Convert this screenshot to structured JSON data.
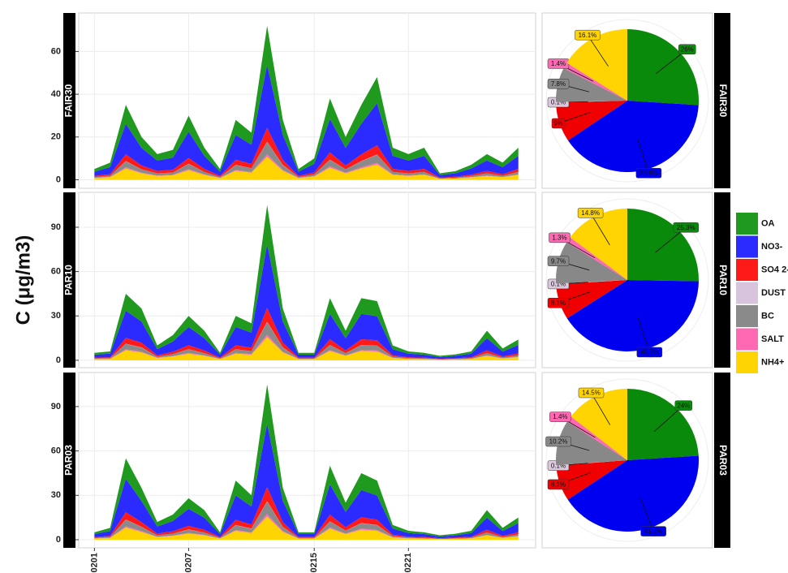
{
  "y_label": "C (μg/m3)",
  "chart_data": [
    {
      "type": "area",
      "title": "FAIR30",
      "x": [
        1,
        2,
        3,
        4,
        5,
        6,
        7,
        8,
        9,
        10,
        11,
        12,
        13,
        14,
        15,
        16,
        17,
        18,
        19,
        20,
        21,
        22,
        23,
        24,
        25,
        26,
        27,
        28
      ],
      "xlim": [
        0,
        29.1
      ],
      "xticks": [
        1,
        7,
        15,
        21
      ],
      "ylim": [
        -4,
        78
      ],
      "yticks": [
        0,
        20,
        40,
        60
      ],
      "grid": true,
      "series": [
        {
          "name": "OA",
          "color": "#1f9a1f",
          "values": [
            1.2,
            2.1,
            8.8,
            5.1,
            3.0,
            3.6,
            7.5,
            3.8,
            1.2,
            7.1,
            5.6,
            18.2,
            7.1,
            1.2,
            2.5,
            9.6,
            5.1,
            8.8,
            12.2,
            3.8,
            3.0,
            3.8,
            0.8,
            1.0,
            1.7,
            3.0,
            2.1,
            3.8
          ]
        },
        {
          "name": "NO3-",
          "color": "#2b2bff",
          "values": [
            2.0,
            3.3,
            14.3,
            8.2,
            4.9,
            5.7,
            12.3,
            6.1,
            2.0,
            11.5,
            9.0,
            29.5,
            11.5,
            2.0,
            4.1,
            15.6,
            8.2,
            14.3,
            19.7,
            6.1,
            4.9,
            6.1,
            1.2,
            1.6,
            2.9,
            4.9,
            3.3,
            6.1
          ]
        },
        {
          "name": "SO4 2-",
          "color": "#ff1a1a",
          "values": [
            0.5,
            0.7,
            3.2,
            1.8,
            1.1,
            1.3,
            2.7,
            1.4,
            0.5,
            2.5,
            2.0,
            6.5,
            2.5,
            0.5,
            0.9,
            3.4,
            1.8,
            3.2,
            4.3,
            1.4,
            1.1,
            1.4,
            0.3,
            0.4,
            0.6,
            1.1,
            0.7,
            1.4
          ]
        },
        {
          "name": "DUST",
          "color": "#d8c4dc",
          "values": [
            0,
            0,
            0.1,
            0,
            0,
            0,
            0.1,
            0,
            0,
            0.1,
            0,
            0.1,
            0.1,
            0,
            0,
            0.1,
            0,
            0.1,
            0.1,
            0,
            0,
            0,
            0,
            0,
            0,
            0,
            0,
            0
          ]
        },
        {
          "name": "BC",
          "color": "#8a8a8a",
          "values": [
            0.4,
            0.6,
            2.8,
            1.6,
            1.0,
            1.1,
            2.4,
            1.2,
            0.4,
            2.2,
            1.8,
            5.8,
            2.2,
            0.4,
            0.8,
            3.0,
            1.6,
            2.8,
            3.8,
            1.2,
            1.0,
            1.2,
            0.2,
            0.3,
            0.6,
            1.0,
            0.6,
            1.2
          ]
        },
        {
          "name": "SALT",
          "color": "#ff69b4",
          "values": [
            0.1,
            0.1,
            0.5,
            0.3,
            0.2,
            0.2,
            0.5,
            0.2,
            0.1,
            0.4,
            0.3,
            1.1,
            0.4,
            0.1,
            0.2,
            0.6,
            0.3,
            0.5,
            0.7,
            0.2,
            0.2,
            0.2,
            0,
            0.1,
            0.1,
            0.2,
            0.1,
            0.2
          ]
        },
        {
          "name": "NH4+",
          "color": "#ffd400",
          "values": [
            0.8,
            1.2,
            5.3,
            3.0,
            1.8,
            2.1,
            4.5,
            2.3,
            0.8,
            4.2,
            3.3,
            10.8,
            4.2,
            0.8,
            1.5,
            5.7,
            3.0,
            5.3,
            7.2,
            2.3,
            1.8,
            2.3,
            0.5,
            0.6,
            1.1,
            1.8,
            1.2,
            2.3
          ]
        }
      ]
    },
    {
      "type": "area",
      "title": "PAR10",
      "x": [
        1,
        2,
        3,
        4,
        5,
        6,
        7,
        8,
        9,
        10,
        11,
        12,
        13,
        14,
        15,
        16,
        17,
        18,
        19,
        20,
        21,
        22,
        23,
        24,
        25,
        26,
        27,
        28
      ],
      "xlim": [
        0,
        29.1
      ],
      "xticks": [
        1,
        7,
        15,
        21
      ],
      "ylim": [
        -5,
        113.6
      ],
      "yticks": [
        0,
        30,
        60,
        90
      ],
      "grid": true,
      "series": [
        {
          "color": "#1f9a1f",
          "values": [
            1.2,
            1.5,
            11.4,
            8.8,
            2.5,
            4.3,
            7.5,
            5.1,
            1.2,
            7.5,
            6.3,
            26.5,
            8.8,
            1.2,
            1.2,
            10.6,
            5.1,
            10.6,
            10.1,
            2.5,
            1.5,
            1.2,
            0.8,
            1.0,
            1.5,
            5.1,
            2.1,
            3.6
          ]
        },
        {
          "color": "#2b2bff",
          "values": [
            2.0,
            2.5,
            18.4,
            14.3,
            4.1,
            7.0,
            12.3,
            8.2,
            2.0,
            12.3,
            10.2,
            43.0,
            14.3,
            2.0,
            2.0,
            17.2,
            8.2,
            17.2,
            16.4,
            4.1,
            2.5,
            2.0,
            1.2,
            1.6,
            2.5,
            8.2,
            3.3,
            5.7
          ]
        },
        {
          "color": "#ff1a1a",
          "values": [
            0.5,
            0.5,
            4.0,
            3.2,
            0.9,
            1.5,
            2.7,
            1.8,
            0.5,
            2.7,
            2.3,
            9.5,
            3.2,
            0.5,
            0.5,
            3.8,
            1.8,
            3.8,
            3.6,
            0.9,
            0.5,
            0.5,
            0.3,
            0.4,
            0.5,
            1.8,
            0.7,
            1.3
          ]
        },
        {
          "color": "#d8c4dc",
          "values": [
            0,
            0,
            0.1,
            0.1,
            0,
            0,
            0.1,
            0,
            0,
            0.1,
            0,
            0.2,
            0.1,
            0,
            0,
            0.1,
            0,
            0.1,
            0.1,
            0,
            0,
            0,
            0,
            0,
            0,
            0,
            0,
            0
          ]
        },
        {
          "color": "#8a8a8a",
          "values": [
            0.4,
            0.5,
            3.6,
            2.8,
            0.8,
            1.4,
            2.4,
            1.6,
            0.4,
            2.4,
            2.0,
            8.4,
            2.8,
            0.4,
            0.4,
            3.4,
            1.6,
            3.4,
            3.2,
            0.8,
            0.5,
            0.4,
            0.2,
            0.3,
            0.5,
            1.6,
            0.6,
            1.1
          ]
        },
        {
          "color": "#ff69b4",
          "values": [
            0.1,
            0.1,
            0.7,
            0.5,
            0.2,
            0.2,
            0.5,
            0.3,
            0.1,
            0.5,
            0.4,
            1.6,
            0.5,
            0.1,
            0.1,
            0.6,
            0.3,
            0.6,
            0.6,
            0.2,
            0.1,
            0.1,
            0,
            0.1,
            0.1,
            0.3,
            0.1,
            0.2
          ]
        },
        {
          "color": "#ffd400",
          "values": [
            0.8,
            0.9,
            6.8,
            5.3,
            1.5,
            2.6,
            4.5,
            3.0,
            0.8,
            4.5,
            3.8,
            15.8,
            5.3,
            0.8,
            0.8,
            6.3,
            3.0,
            6.3,
            6.0,
            1.5,
            0.9,
            0.8,
            0.5,
            0.6,
            0.9,
            3.0,
            1.2,
            2.1
          ]
        }
      ]
    },
    {
      "type": "area",
      "title": "PAR03",
      "x": [
        1,
        2,
        3,
        4,
        5,
        6,
        7,
        8,
        9,
        10,
        11,
        12,
        13,
        14,
        15,
        16,
        17,
        18,
        19,
        20,
        21,
        22,
        23,
        24,
        25,
        26,
        27,
        28
      ],
      "xlim": [
        0,
        29.1
      ],
      "xticks": [
        {
          "value": 1,
          "label": "0201"
        },
        {
          "value": 7,
          "label": "0207"
        },
        {
          "value": 15,
          "label": "0215"
        },
        {
          "value": 21,
          "label": "0221"
        }
      ],
      "ylim": [
        -5.5,
        113
      ],
      "yticks": [
        0,
        30,
        60,
        90
      ],
      "grid": true,
      "series": [
        {
          "color": "#1f9a1f",
          "values": [
            1.2,
            2.1,
            13.9,
            8.8,
            3.0,
            4.3,
            7.1,
            5.1,
            1.2,
            10.1,
            7.5,
            26.5,
            8.8,
            1.2,
            1.2,
            12.6,
            6.3,
            11.4,
            10.1,
            2.5,
            1.5,
            1.2,
            0.8,
            1.0,
            1.5,
            5.1,
            2.1,
            3.8
          ]
        },
        {
          "color": "#2b2bff",
          "values": [
            2.0,
            3.3,
            22.5,
            14.3,
            4.9,
            7.0,
            11.5,
            8.2,
            2.0,
            16.4,
            12.3,
            43.0,
            14.3,
            2.0,
            2.0,
            20.5,
            10.2,
            18.4,
            16.4,
            4.1,
            2.5,
            2.0,
            1.2,
            1.6,
            2.5,
            8.2,
            3.3,
            6.1
          ]
        },
        {
          "color": "#ff1a1a",
          "values": [
            0.5,
            0.7,
            5.0,
            3.2,
            1.1,
            1.5,
            2.5,
            1.8,
            0.5,
            3.6,
            2.7,
            9.5,
            3.2,
            0.5,
            0.5,
            4.5,
            2.3,
            4.0,
            3.6,
            0.9,
            0.5,
            0.5,
            0.3,
            0.4,
            0.5,
            1.8,
            0.7,
            1.4
          ]
        },
        {
          "color": "#d8c4dc",
          "values": [
            0,
            0,
            0.1,
            0.1,
            0,
            0,
            0.1,
            0,
            0,
            0.1,
            0.1,
            0.2,
            0.1,
            0,
            0,
            0.1,
            0,
            0.1,
            0.1,
            0,
            0,
            0,
            0,
            0,
            0,
            0,
            0,
            0
          ]
        },
        {
          "color": "#8a8a8a",
          "values": [
            0.4,
            0.6,
            4.4,
            2.8,
            1.0,
            1.4,
            2.2,
            1.6,
            0.4,
            3.2,
            2.4,
            8.4,
            2.8,
            0.4,
            0.4,
            4.0,
            2.0,
            3.6,
            3.2,
            0.8,
            0.5,
            0.4,
            0.2,
            0.3,
            0.5,
            1.6,
            0.6,
            1.2
          ]
        },
        {
          "color": "#ff69b4",
          "values": [
            0.1,
            0.1,
            0.8,
            0.5,
            0.2,
            0.2,
            0.4,
            0.3,
            0.1,
            0.6,
            0.5,
            1.6,
            0.5,
            0.1,
            0.1,
            0.8,
            0.4,
            0.7,
            0.6,
            0.2,
            0.1,
            0.1,
            0,
            0.1,
            0.1,
            0.3,
            0.1,
            0.2
          ]
        },
        {
          "color": "#ffd400",
          "values": [
            0.8,
            1.2,
            8.3,
            5.3,
            1.8,
            2.6,
            4.2,
            3.0,
            0.8,
            6.0,
            4.5,
            15.8,
            5.3,
            0.8,
            0.8,
            7.5,
            3.8,
            6.8,
            6.0,
            1.5,
            0.9,
            0.8,
            0.5,
            0.6,
            0.9,
            3.0,
            1.2,
            2.3
          ]
        }
      ]
    },
    {
      "type": "pie",
      "title": "FAIR30",
      "values": [
        26,
        39.6,
        9,
        0.1,
        7.8,
        1.4,
        16.1
      ],
      "value_labels": [
        "26%",
        "39.6%",
        "9%",
        "0.1%",
        "7.8%",
        "1.4%",
        "16.1%"
      ],
      "colors": [
        "#0a8a0a",
        "#0000f0",
        "#f00000",
        "#dcc8dc",
        "#888888",
        "#ff69b4",
        "#ffd400"
      ]
    },
    {
      "type": "pie",
      "title": "PAR10",
      "values": [
        25.3,
        40.7,
        8.1,
        0.1,
        9.7,
        1.3,
        14.8
      ],
      "value_labels": [
        "25.3%",
        "40.7%",
        "8.1%",
        "0.1%",
        "9.7%",
        "1.3%",
        "14.8%"
      ],
      "colors": [
        "#0a8a0a",
        "#0000f0",
        "#f00000",
        "#dcc8dc",
        "#888888",
        "#ff69b4",
        "#ffd400"
      ]
    },
    {
      "type": "pie",
      "title": "PAR03",
      "values": [
        24,
        41.7,
        8.1,
        0.1,
        10.2,
        1.4,
        14.5
      ],
      "value_labels": [
        "24%",
        "41.7%",
        "8.1%",
        "0.1%",
        "10.2%",
        "1.4%",
        "14.5%"
      ],
      "colors": [
        "#0a8a0a",
        "#0000f0",
        "#f00000",
        "#dcc8dc",
        "#888888",
        "#ff69b4",
        "#ffd400"
      ]
    }
  ]
}
